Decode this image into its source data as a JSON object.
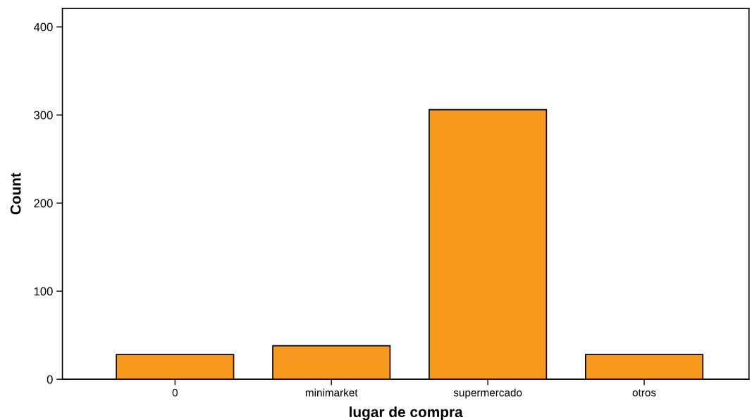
{
  "chart_data": {
    "type": "bar",
    "xlabel": "lugar de compra",
    "ylabel": "Count",
    "categories": [
      "0",
      "minimarket",
      "supermercado",
      "otros"
    ],
    "values": [
      28,
      38,
      306,
      28
    ],
    "color": "#f7991f",
    "ylim": [
      0,
      421
    ],
    "yticks": [
      0,
      100,
      200,
      300,
      400
    ],
    "grid": false
  }
}
